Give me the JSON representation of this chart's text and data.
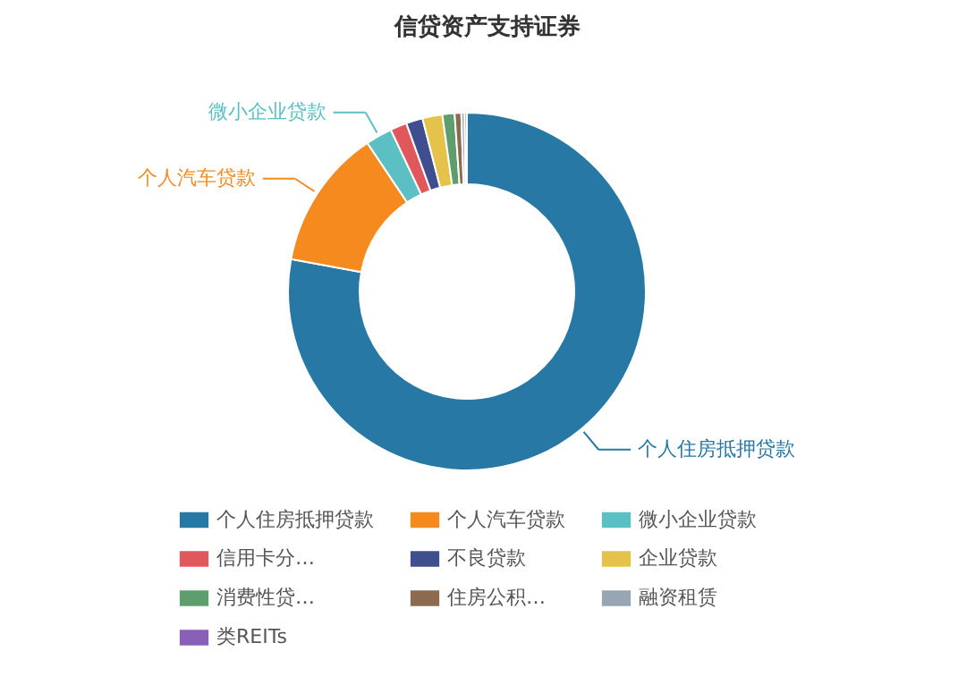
{
  "chart_data": {
    "type": "donut",
    "title": "信贷资产支持证券",
    "categories": [
      "个人住房抵押贷款",
      "个人汽车贷款",
      "微小企业贷款",
      "信用卡分…",
      "不良贷款",
      "企业贷款",
      "消费性贷…",
      "住房公积…",
      "融资租赁",
      "类REITs"
    ],
    "values": [
      77.9,
      12.7,
      2.4,
      1.5,
      1.5,
      1.8,
      1.1,
      0.6,
      0.3,
      0.2
    ],
    "colors": [
      "#2778a4",
      "#f58a1f",
      "#5cbfc4",
      "#e0585b",
      "#3f4e8e",
      "#e5c34a",
      "#5e9e6e",
      "#8b6a4f",
      "#98a6b4",
      "#8a5fb8"
    ],
    "legend": "bottom"
  }
}
